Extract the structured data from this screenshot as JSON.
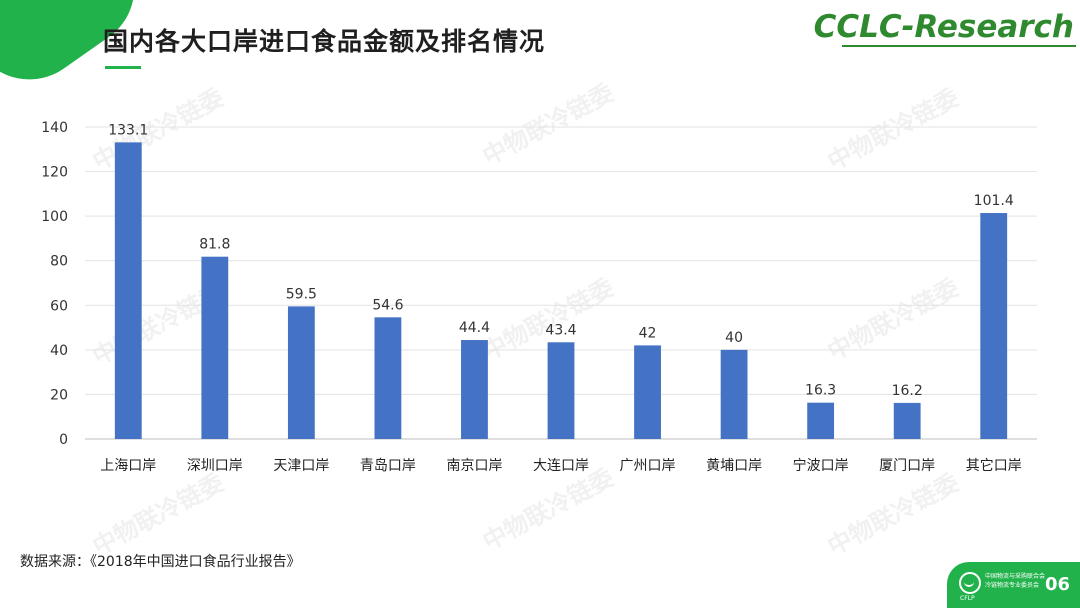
{
  "header": {
    "title": "国内各大口岸进口食品金额及排名情况",
    "brand": "CCLC-Research"
  },
  "watermark": "中物联冷链委",
  "source": "数据来源：《2018年中国进口食品行业报告》",
  "footer": {
    "org_line1": "中国物流与采购联合会",
    "org_line2": "冷链物流专业委员会",
    "logo_abbr": "CFLP",
    "page_number": "06"
  },
  "colors": {
    "accent": "#22b24c",
    "brand": "#2f8a2f",
    "bar": "#4472c4"
  },
  "chart_data": {
    "type": "bar",
    "categories": [
      "上海口岸",
      "深圳口岸",
      "天津口岸",
      "青岛口岸",
      "南京口岸",
      "大连口岸",
      "广州口岸",
      "黄埔口岸",
      "宁波口岸",
      "厦门口岸",
      "其它口岸"
    ],
    "values": [
      133.1,
      81.8,
      59.5,
      54.6,
      44.4,
      43.4,
      42,
      40,
      16.3,
      16.2,
      101.4
    ],
    "ylim": [
      0,
      140
    ],
    "yticks": [
      0,
      20,
      40,
      60,
      80,
      100,
      120,
      140
    ],
    "grid": true,
    "data_labels": true,
    "color": "#4472c4"
  }
}
